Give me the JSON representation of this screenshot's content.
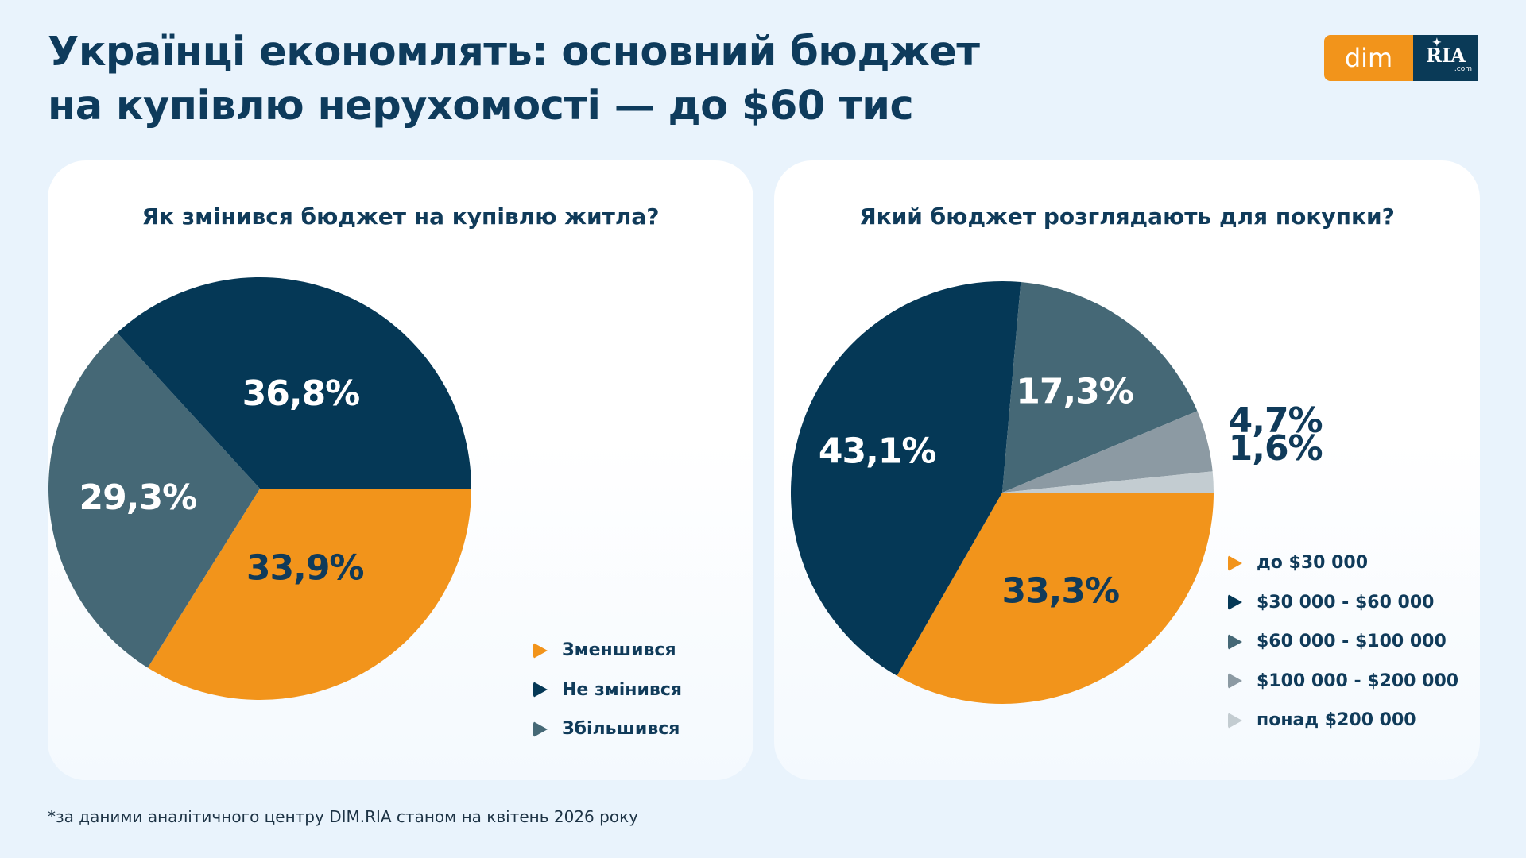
{
  "header": {
    "title": "Українці економлять: основний бюджет\nна купівлю нерухомості — до $60 тис"
  },
  "logo": {
    "dim": "dim",
    "ria": "RIA",
    "com": ".com"
  },
  "footnote": "*за даними аналітичного центру DIM.RIA станом на квітень 2026 року",
  "colors": {
    "orange": "#f2941b",
    "navy": "#053856",
    "slate": "#456876",
    "gray": "#8c9aa3",
    "light_gray": "#c3ccd1",
    "text": "#103b5a",
    "background": "#e9f3fc"
  },
  "chart_data": [
    {
      "type": "pie",
      "title": "Як змінився бюджет на купівлю житла?",
      "start_angle_deg": 90,
      "direction": "clockwise",
      "legend_position": "bottom-right",
      "slices": [
        {
          "name": "Зменшився",
          "value": 33.9,
          "label": "33,9%",
          "color": "#f2941b",
          "label_color": "#103b5a"
        },
        {
          "name": "Збільшився",
          "value": 29.3,
          "label": "29,3%",
          "color": "#456876",
          "label_color": "#ffffff"
        },
        {
          "name": "Не змінився",
          "value": 36.8,
          "label": "36,8%",
          "color": "#053856",
          "label_color": "#ffffff"
        }
      ],
      "legend": [
        {
          "label": "Зменшився",
          "color": "#f2941b"
        },
        {
          "label": "Не змінився",
          "color": "#053856"
        },
        {
          "label": "Збільшився",
          "color": "#456876"
        }
      ]
    },
    {
      "type": "pie",
      "title": "Який бюджет розглядають для покупки?",
      "start_angle_deg": 90,
      "direction": "clockwise",
      "legend_position": "bottom-right",
      "slices": [
        {
          "name": "до $30 000",
          "value": 33.3,
          "label": "33,3%",
          "color": "#f2941b",
          "label_color": "#103b5a",
          "label_outside": false
        },
        {
          "name": "$30 000 - $60 000",
          "value": 43.1,
          "label": "43,1%",
          "color": "#053856",
          "label_color": "#ffffff",
          "label_outside": false
        },
        {
          "name": "$60 000 - $100 000",
          "value": 17.3,
          "label": "17,3%",
          "color": "#456876",
          "label_color": "#ffffff",
          "label_outside": false
        },
        {
          "name": "$100 000 - $200 000",
          "value": 4.7,
          "label": "4,7%",
          "color": "#8c9aa3",
          "label_color": "#103b5a",
          "label_outside": true
        },
        {
          "name": "понад $200 000",
          "value": 1.6,
          "label": "1,6%",
          "color": "#c3ccd1",
          "label_color": "#103b5a",
          "label_outside": true
        }
      ],
      "legend": [
        {
          "label": "до $30 000",
          "color": "#f2941b"
        },
        {
          "label": "$30 000 - $60 000",
          "color": "#053856"
        },
        {
          "label": "$60 000 - $100 000",
          "color": "#456876"
        },
        {
          "label": "$100 000 - $200 000",
          "color": "#8c9aa3"
        },
        {
          "label": "понад $200 000",
          "color": "#c3ccd1"
        }
      ]
    }
  ]
}
